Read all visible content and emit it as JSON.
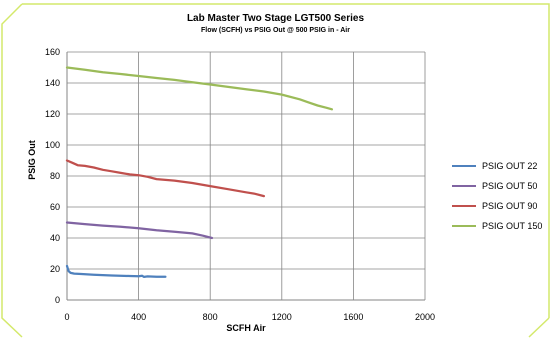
{
  "chart_data": {
    "type": "line",
    "title": "Lab Master Two Stage LGT500 Series",
    "subtitle": "Flow (SCFH) vs PSIG Out @ 500 PSIG in - Air",
    "xlabel": "SCFH Air",
    "ylabel": "PSIG Out",
    "xlim": [
      0,
      2000
    ],
    "ylim": [
      0,
      160
    ],
    "xticks": [
      0,
      400,
      800,
      1200,
      1600,
      2000
    ],
    "yticks": [
      0,
      20,
      40,
      60,
      80,
      100,
      120,
      140,
      160
    ],
    "grid": true,
    "legend_position": "right",
    "series": [
      {
        "name": "PSIG OUT 22",
        "color": "#4f81bd",
        "x": [
          0,
          5,
          10,
          20,
          40,
          80,
          150,
          250,
          350,
          400,
          420,
          430,
          450,
          500,
          550
        ],
        "y": [
          22,
          20,
          18.5,
          17.5,
          17,
          16.8,
          16.3,
          15.8,
          15.5,
          15.3,
          15.6,
          14.9,
          15.2,
          15.0,
          15.0
        ]
      },
      {
        "name": "PSIG OUT 50",
        "color": "#8064a2",
        "x": [
          0,
          100,
          200,
          300,
          400,
          500,
          600,
          700,
          760,
          810
        ],
        "y": [
          50,
          49,
          48,
          47.2,
          46.3,
          45,
          44,
          43,
          41.5,
          40
        ]
      },
      {
        "name": "PSIG OUT 90",
        "color": "#c0504d",
        "x": [
          0,
          30,
          60,
          100,
          150,
          200,
          250,
          300,
          350,
          400,
          450,
          500,
          600,
          700,
          800,
          900,
          1000,
          1050,
          1100
        ],
        "y": [
          90,
          88.5,
          87,
          86.5,
          85.5,
          84,
          83,
          82,
          81,
          80.5,
          79.5,
          78,
          77,
          75.5,
          73.5,
          71.5,
          69.5,
          68.5,
          67
        ]
      },
      {
        "name": "PSIG OUT 150",
        "color": "#9bbb59",
        "x": [
          0,
          100,
          200,
          300,
          400,
          500,
          600,
          700,
          800,
          900,
          1000,
          1100,
          1200,
          1300,
          1350,
          1400,
          1450,
          1480
        ],
        "y": [
          150,
          148.5,
          147,
          145.8,
          144.5,
          143.2,
          142,
          140.5,
          139,
          137.5,
          136,
          134.5,
          132.5,
          129.5,
          127.5,
          125.5,
          124,
          123
        ]
      }
    ]
  }
}
